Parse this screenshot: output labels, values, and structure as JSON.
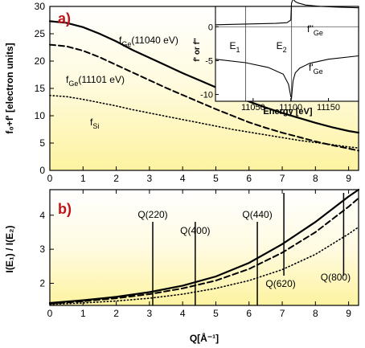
{
  "figure": {
    "x_axis_label": "Q[Å⁻¹]"
  },
  "chart_data": [
    {
      "type": "line",
      "panel_label": "a)",
      "ylabel": "f₀+f' [electron units]",
      "xlim": [
        0,
        9.3
      ],
      "ylim": [
        0,
        30
      ],
      "xticks": [
        0,
        1,
        2,
        3,
        4,
        5,
        6,
        7,
        8,
        9
      ],
      "yticks": [
        0,
        5,
        10,
        15,
        20,
        25,
        30
      ],
      "background": "#fdf6a8",
      "series": [
        {
          "name": "fGe(11040 eV)",
          "style": "solid",
          "x": [
            0,
            0.5,
            1,
            1.5,
            2,
            2.5,
            3,
            3.5,
            4,
            4.5,
            5,
            5.5,
            6,
            6.5,
            7,
            7.5,
            8,
            8.5,
            9,
            9.3
          ],
          "y": [
            27.3,
            27.0,
            26.2,
            25.0,
            23.6,
            22.0,
            20.6,
            19.2,
            17.8,
            16.5,
            15.2,
            13.9,
            12.6,
            11.5,
            10.5,
            9.6,
            8.7,
            7.9,
            7.2,
            6.9
          ]
        },
        {
          "name": "fGe(11101 eV)",
          "style": "dashed",
          "x": [
            0,
            0.5,
            1,
            1.5,
            2,
            2.5,
            3,
            3.5,
            4,
            4.5,
            5,
            5.5,
            6,
            6.5,
            7,
            7.5,
            8,
            8.5,
            9,
            9.3
          ],
          "y": [
            23.0,
            22.7,
            21.9,
            20.7,
            19.3,
            17.9,
            16.5,
            15.1,
            13.8,
            12.5,
            11.2,
            10.0,
            8.8,
            7.8,
            6.9,
            6.1,
            5.3,
            4.6,
            4.0,
            3.6
          ]
        },
        {
          "name": "fSi",
          "style": "dotted",
          "x": [
            0,
            0.5,
            1,
            1.5,
            2,
            2.5,
            3,
            3.5,
            4,
            4.5,
            5,
            5.5,
            6,
            6.5,
            7,
            7.5,
            8,
            8.5,
            9,
            9.3
          ],
          "y": [
            13.7,
            13.5,
            13.0,
            12.4,
            11.8,
            11.1,
            10.5,
            9.9,
            9.3,
            8.7,
            8.1,
            7.5,
            7.0,
            6.5,
            6.0,
            5.5,
            5.1,
            4.7,
            4.3,
            4.1
          ]
        }
      ],
      "labels": [
        {
          "base": "f",
          "sub": "Ge",
          "rest": "(11040 eV)"
        },
        {
          "base": "f",
          "sub": "Ge",
          "rest": "(11101 eV)"
        },
        {
          "base": "f",
          "sub": "Si",
          "rest": ""
        }
      ]
    },
    {
      "type": "line",
      "role": "inset",
      "ylabel": "f' or f''",
      "xlabel": "Energy [eV]",
      "xlim": [
        11000,
        11190
      ],
      "ylim": [
        -11,
        3
      ],
      "xticks": [
        11050,
        11100,
        11150
      ],
      "yticks": [
        0,
        -5,
        -10
      ],
      "markers": [
        {
          "label": "E",
          "sub": "1",
          "x": 11040
        },
        {
          "label": "E",
          "sub": "2",
          "x": 11101
        }
      ],
      "series": [
        {
          "name": "f''Ge",
          "x": [
            11000,
            11040,
            11080,
            11095,
            11100,
            11101,
            11103,
            11106,
            11110,
            11120,
            11140,
            11160,
            11190
          ],
          "y": [
            0.3,
            0.4,
            0.5,
            0.6,
            1.0,
            3.5,
            4.1,
            3.7,
            3.5,
            3.2,
            3.0,
            2.9,
            2.8
          ]
        },
        {
          "name": "f'Ge",
          "x": [
            11000,
            11040,
            11070,
            11090,
            11097,
            11100,
            11101,
            11103,
            11106,
            11112,
            11125,
            11150,
            11190
          ],
          "y": [
            -4.8,
            -5.3,
            -6.0,
            -7.0,
            -8.5,
            -10.3,
            -10.5,
            -8.0,
            -6.8,
            -6.1,
            -5.4,
            -4.8,
            -4.3
          ]
        }
      ],
      "labels": [
        {
          "base": "f''",
          "sub": "Ge"
        },
        {
          "base": "f'",
          "sub": "Ge"
        }
      ]
    },
    {
      "type": "line",
      "panel_label": "b)",
      "ylabel": "I(E₁) / I(E₂)",
      "xlim": [
        0,
        9.3
      ],
      "ylim": [
        1.35,
        4.75
      ],
      "xticks": [
        0,
        1,
        2,
        3,
        4,
        5,
        6,
        7,
        8,
        9
      ],
      "yticks": [
        2,
        3,
        4
      ],
      "background": "#fdf6a8",
      "series": [
        {
          "name": "solid",
          "style": "solid",
          "x": [
            0,
            1,
            2,
            3,
            4,
            5,
            6,
            7,
            8,
            9,
            9.3
          ],
          "y": [
            1.42,
            1.5,
            1.6,
            1.74,
            1.93,
            2.2,
            2.6,
            3.15,
            3.8,
            4.55,
            4.75
          ]
        },
        {
          "name": "dashed",
          "style": "dashed",
          "x": [
            0,
            1,
            2,
            3,
            4,
            5,
            6,
            7,
            8,
            9,
            9.3
          ],
          "y": [
            1.4,
            1.47,
            1.56,
            1.68,
            1.85,
            2.08,
            2.42,
            2.9,
            3.5,
            4.25,
            4.5
          ]
        },
        {
          "name": "dotted",
          "style": "dotted",
          "x": [
            0,
            1,
            2,
            3,
            4,
            5,
            6,
            7,
            8,
            9,
            9.3
          ],
          "y": [
            1.38,
            1.42,
            1.48,
            1.56,
            1.68,
            1.85,
            2.08,
            2.4,
            2.85,
            3.45,
            3.65
          ]
        }
      ],
      "reflections": [
        {
          "label": "Q(220)",
          "x": 3.1,
          "position": "above"
        },
        {
          "label": "Q(400)",
          "x": 4.38,
          "position": "above"
        },
        {
          "label": "Q(440)",
          "x": 6.25,
          "position": "above"
        },
        {
          "label": "Q(620)",
          "x": 7.05,
          "position": "below"
        },
        {
          "label": "Q(800)",
          "x": 8.85,
          "position": "below"
        }
      ]
    }
  ]
}
